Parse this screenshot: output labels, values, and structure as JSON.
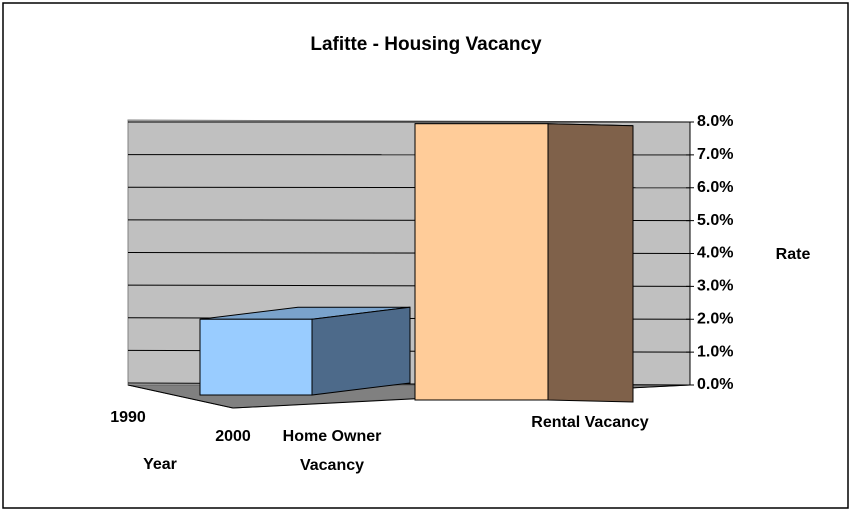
{
  "chart_data": {
    "type": "bar3d",
    "title": "Lafitte - Housing Vacancy",
    "categories": [
      "Home Owner Vacancy",
      "Rental Vacancy"
    ],
    "values": [
      2.0,
      8.1
    ],
    "colors": [
      "#99ccff",
      "#ffcc99"
    ],
    "side_colors": [
      "#4d6a8a",
      "#7f614a"
    ],
    "top_colors": [
      "#7aa3cc",
      "#ffdcb8"
    ],
    "depth_categories": [
      "1990",
      "2000"
    ],
    "depth_axis_label": "Year",
    "y_axis_label": "Rate",
    "ylim": [
      0,
      8
    ],
    "yticks": [
      {
        "value": 0,
        "label": "0.0%"
      },
      {
        "value": 1,
        "label": "1.0%"
      },
      {
        "value": 2,
        "label": "2.0%"
      },
      {
        "value": 3,
        "label": "3.0%"
      },
      {
        "value": 4,
        "label": "4.0%"
      },
      {
        "value": 5,
        "label": "5.0%"
      },
      {
        "value": 6,
        "label": "6.0%"
      },
      {
        "value": 7,
        "label": "7.0%"
      },
      {
        "value": 8,
        "label": "8.0%"
      }
    ],
    "grid": true
  }
}
